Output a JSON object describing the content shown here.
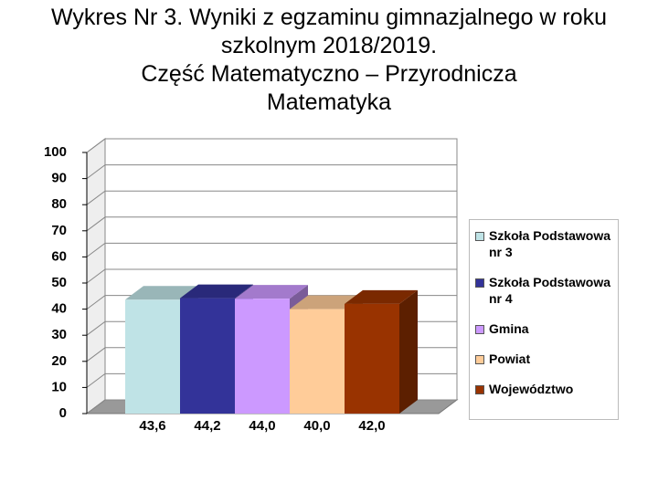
{
  "chart_data": {
    "type": "bar3d",
    "title": "Wykres Nr 3. Wyniki z egzaminu gimnazjalnego w roku szkolnym 2018/2019.",
    "subtitle": "Część Matematyczno – Przyrodnicza",
    "subtitle2": "Matematyka",
    "series": [
      {
        "name": "Szkoła Podstawowa nr 3",
        "color": "#bfe3e6",
        "values": [
          43.6
        ],
        "value_labels": [
          "43,6"
        ]
      },
      {
        "name": "Szkoła Podstawowa nr 4",
        "color": "#333399",
        "values": [
          44.2
        ],
        "value_labels": [
          "44,2"
        ]
      },
      {
        "name": "Gmina",
        "color": "#cc99ff",
        "values": [
          44.0
        ],
        "value_labels": [
          "44,0"
        ]
      },
      {
        "name": "Powiat",
        "color": "#ffcc99",
        "values": [
          40.0
        ],
        "value_labels": [
          "40,0"
        ]
      },
      {
        "name": "Województwo",
        "color": "#993300",
        "values": [
          42.0
        ],
        "value_labels": [
          "42,0"
        ]
      }
    ],
    "ylim": [
      0,
      100
    ],
    "yticks": [
      0,
      10,
      20,
      30,
      40,
      50,
      60,
      70,
      80,
      90,
      100
    ],
    "grid": true
  }
}
